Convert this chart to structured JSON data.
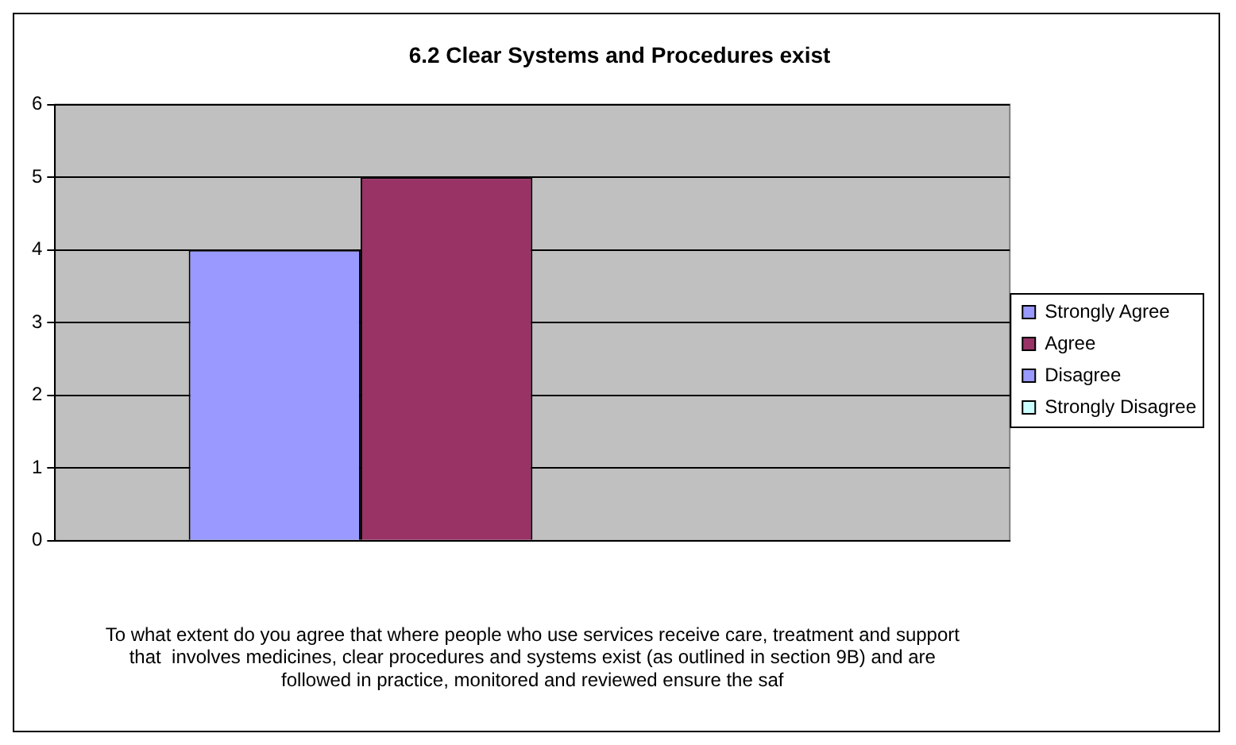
{
  "chart_data": {
    "type": "bar",
    "title": "6.2 Clear Systems and Procedures exist",
    "categories": [
      null
    ],
    "xlabel": "To what extent do you agree that where people who use services receive care, treatment and support that  involves medicines, clear procedures and systems exist (as outlined in section 9B) and are followed in practice, monitored and reviewed ensure the saf",
    "series": [
      {
        "name": "Strongly Agree",
        "color": "#9999ff",
        "values": [
          4
        ]
      },
      {
        "name": "Agree",
        "color": "#993366",
        "values": [
          5
        ]
      },
      {
        "name": "Disagree",
        "color": "#9999ff",
        "values": [
          0
        ]
      },
      {
        "name": "Strongly Disagree",
        "color": "#ccffff",
        "values": [
          0
        ]
      }
    ],
    "ylim": [
      0,
      6
    ],
    "yticks": [
      0,
      1,
      2,
      3,
      4,
      5,
      6
    ],
    "grid": "y",
    "legend": "right"
  }
}
